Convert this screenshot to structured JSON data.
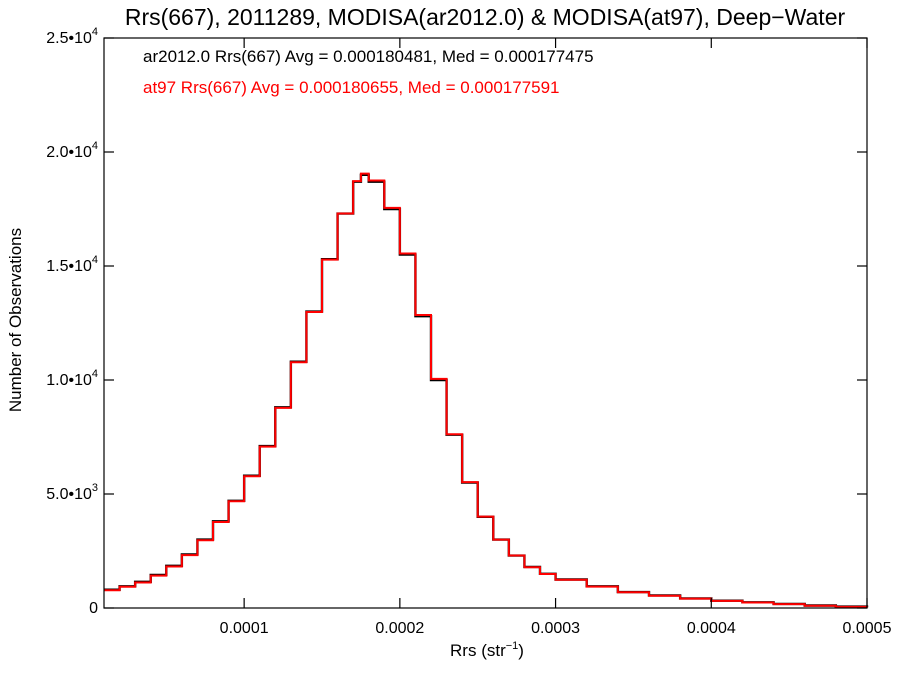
{
  "chart_data": {
    "type": "line",
    "title": "Rrs(667), 2011289, MODISA(ar2012.0) & MODISA(at97), Deep−Water",
    "xlabel_main": "Rrs (str",
    "xlabel_sup": "−1",
    "xlabel_end": ")",
    "ylabel": "Number of Observations",
    "xlim": [
      1e-05,
      0.0005
    ],
    "ylim": [
      0,
      25000
    ],
    "x_ticks": [
      {
        "value": 0.0001,
        "label": "0.0001"
      },
      {
        "value": 0.0002,
        "label": "0.0002"
      },
      {
        "value": 0.0003,
        "label": "0.0003"
      },
      {
        "value": 0.0004,
        "label": "0.0004"
      },
      {
        "value": 0.0005,
        "label": "0.0005"
      }
    ],
    "y_ticks": [
      {
        "value": 0,
        "mant": "0",
        "exp": ""
      },
      {
        "value": 5000,
        "mant": "5.0•10",
        "exp": "3"
      },
      {
        "value": 10000,
        "mant": "1.0•10",
        "exp": "4"
      },
      {
        "value": 15000,
        "mant": "1.5•10",
        "exp": "4"
      },
      {
        "value": 20000,
        "mant": "2.0•10",
        "exp": "4"
      },
      {
        "value": 25000,
        "mant": "2.5•10",
        "exp": "4"
      }
    ],
    "grid": false,
    "legend_placement": "top-left",
    "series": [
      {
        "name": "ar2012.0 Rrs(667) Avg = 0.000180481, Med = 0.000177475",
        "color": "#000000",
        "x": [
          1e-05,
          2e-05,
          3e-05,
          4e-05,
          5e-05,
          6e-05,
          7e-05,
          8e-05,
          9e-05,
          0.0001,
          0.00011,
          0.00012,
          0.00013,
          0.00014,
          0.00015,
          0.00016,
          0.00017,
          0.000175,
          0.00018,
          0.00019,
          0.0002,
          0.00021,
          0.00022,
          0.00023,
          0.00024,
          0.00025,
          0.00026,
          0.00027,
          0.00028,
          0.00029,
          0.0003,
          0.00032,
          0.00034,
          0.00036,
          0.00038,
          0.0004,
          0.00042,
          0.00044,
          0.00046,
          0.00048,
          0.0005
        ],
        "y": [
          800,
          950,
          1150,
          1450,
          1850,
          2350,
          3000,
          3800,
          4700,
          5800,
          7100,
          8800,
          10800,
          13000,
          15300,
          17300,
          18700,
          19000,
          18700,
          17500,
          15500,
          12800,
          10000,
          7600,
          5500,
          4000,
          3000,
          2300,
          1800,
          1500,
          1250,
          950,
          700,
          550,
          420,
          320,
          250,
          180,
          110,
          60,
          30
        ]
      },
      {
        "name": "at97 Rrs(667) Avg = 0.000180655, Med = 0.000177591",
        "color": "#ff0000",
        "x": [
          1e-05,
          2e-05,
          3e-05,
          4e-05,
          5e-05,
          6e-05,
          7e-05,
          8e-05,
          9e-05,
          0.0001,
          0.00011,
          0.00012,
          0.00013,
          0.00014,
          0.00015,
          0.00016,
          0.00017,
          0.000175,
          0.00018,
          0.00019,
          0.0002,
          0.00021,
          0.00022,
          0.00023,
          0.00024,
          0.00025,
          0.00026,
          0.00027,
          0.00028,
          0.00029,
          0.0003,
          0.00032,
          0.00034,
          0.00036,
          0.00038,
          0.0004,
          0.00042,
          0.00044,
          0.00046,
          0.00048,
          0.0005
        ],
        "y": [
          780,
          930,
          1120,
          1420,
          1820,
          2320,
          2970,
          3770,
          4680,
          5780,
          7080,
          8780,
          10780,
          12980,
          15280,
          17300,
          18720,
          19050,
          18750,
          17550,
          15550,
          12850,
          10050,
          7620,
          5520,
          4010,
          3000,
          2300,
          1790,
          1490,
          1240,
          940,
          690,
          540,
          410,
          310,
          240,
          170,
          100,
          50,
          20
        ]
      }
    ]
  }
}
